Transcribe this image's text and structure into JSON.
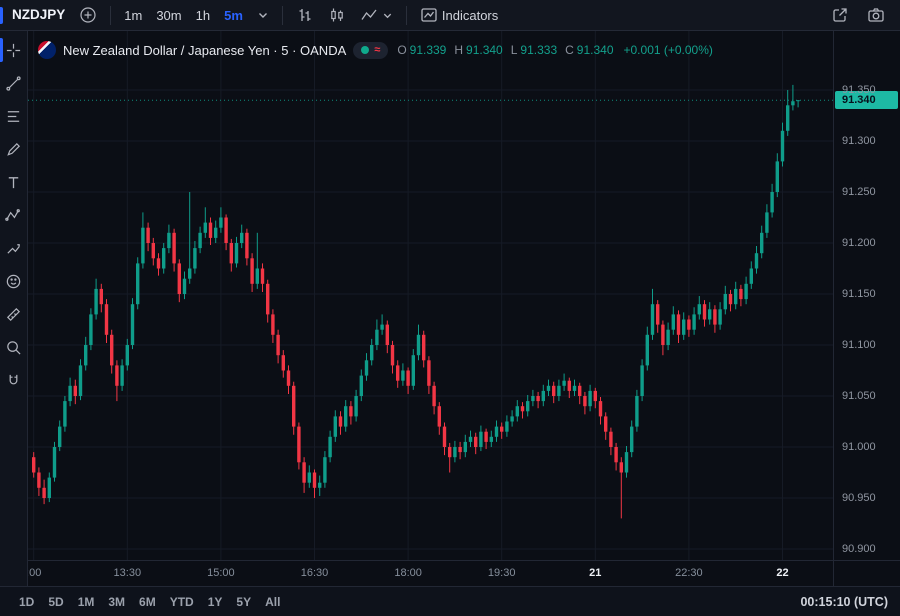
{
  "topbar": {
    "symbol": "NZDJPY",
    "intervals": [
      "1m",
      "30m",
      "1h",
      "5m"
    ],
    "active_interval": "5m",
    "indicators_label": "Indicators"
  },
  "legend": {
    "title": "New Zealand Dollar / Japanese Yen · 5 · OANDA",
    "ohlc": {
      "open_label": "O",
      "open": "91.339",
      "high_label": "H",
      "high": "91.340",
      "low_label": "L",
      "low": "91.333",
      "close_label": "C",
      "close": "91.340",
      "change": "+0.001 (+0.00%)"
    }
  },
  "price_axis": {
    "labels": [
      "91.350",
      "91.300",
      "91.250",
      "91.200",
      "91.150",
      "91.100",
      "91.050",
      "91.000",
      "90.950",
      "90.900"
    ],
    "current_price": "91.340"
  },
  "bottombar": {
    "ranges": [
      "1D",
      "5D",
      "1M",
      "3M",
      "6M",
      "YTD",
      "1Y",
      "5Y",
      "All"
    ],
    "clock": "00:15:10 (UTC)"
  },
  "sidebar_tools": [
    "cursor",
    "trend-line",
    "fib-retracement",
    "brush",
    "text",
    "pattern",
    "forecast",
    "emoji",
    "measure",
    "zoom",
    "magnet"
  ],
  "colors": {
    "up": "#0f9d8a",
    "down": "#f23645",
    "accent": "#2962ff",
    "grid": "#161b26",
    "background": "#0b0e15",
    "price_tag_bg": "#1db9a4"
  },
  "chart_data": {
    "type": "candlestick",
    "title": "New Zealand Dollar / Japanese Yen",
    "symbol": "NZDJPY",
    "exchange": "OANDA",
    "interval": "5m",
    "start_time": "12:00",
    "interval_min": 5,
    "y_axis": {
      "min": 90.9,
      "max": 91.35,
      "step": 0.05
    },
    "x_labels": [
      {
        "index": 0,
        "text": ":00",
        "major": false
      },
      {
        "index": 18,
        "text": "13:30",
        "major": false
      },
      {
        "index": 36,
        "text": "15:00",
        "major": false
      },
      {
        "index": 54,
        "text": "16:30",
        "major": false
      },
      {
        "index": 72,
        "text": "18:00",
        "major": false
      },
      {
        "index": 90,
        "text": "19:30",
        "major": false
      },
      {
        "index": 108,
        "text": "21",
        "major": true
      },
      {
        "index": 126,
        "text": "22:30",
        "major": false
      },
      {
        "index": 144,
        "text": "22",
        "major": true
      }
    ],
    "ohlc": [
      [
        90.99,
        90.995,
        90.97,
        90.975
      ],
      [
        90.975,
        90.98,
        90.952,
        90.96
      ],
      [
        90.96,
        90.968,
        90.944,
        90.95
      ],
      [
        90.95,
        90.975,
        90.946,
        90.97
      ],
      [
        90.97,
        91.005,
        90.966,
        91.0
      ],
      [
        91.0,
        91.026,
        90.996,
        91.02
      ],
      [
        91.02,
        91.05,
        91.015,
        91.045
      ],
      [
        91.045,
        91.068,
        91.04,
        91.06
      ],
      [
        91.06,
        91.066,
        91.042,
        91.05
      ],
      [
        91.05,
        91.086,
        91.046,
        91.08
      ],
      [
        91.08,
        91.108,
        91.075,
        91.1
      ],
      [
        91.1,
        91.136,
        91.095,
        91.13
      ],
      [
        91.13,
        91.165,
        91.125,
        91.155
      ],
      [
        91.155,
        91.16,
        91.132,
        91.14
      ],
      [
        91.14,
        91.145,
        91.102,
        91.11
      ],
      [
        91.11,
        91.115,
        91.072,
        91.08
      ],
      [
        91.08,
        91.085,
        91.045,
        91.06
      ],
      [
        91.06,
        91.086,
        91.055,
        91.08
      ],
      [
        91.08,
        91.106,
        91.075,
        91.1
      ],
      [
        91.1,
        91.146,
        91.096,
        91.14
      ],
      [
        91.14,
        91.186,
        91.135,
        91.18
      ],
      [
        91.18,
        91.23,
        91.175,
        91.215
      ],
      [
        91.215,
        91.22,
        91.192,
        91.2
      ],
      [
        91.2,
        91.205,
        91.178,
        91.185
      ],
      [
        91.185,
        91.19,
        91.168,
        91.175
      ],
      [
        91.175,
        91.2,
        91.17,
        91.195
      ],
      [
        91.195,
        91.218,
        91.19,
        91.21
      ],
      [
        91.21,
        91.214,
        91.172,
        91.18
      ],
      [
        91.18,
        91.184,
        91.142,
        91.15
      ],
      [
        91.15,
        91.172,
        91.145,
        91.165
      ],
      [
        91.165,
        91.25,
        91.16,
        91.175
      ],
      [
        91.175,
        91.202,
        91.17,
        91.195
      ],
      [
        91.195,
        91.216,
        91.19,
        91.21
      ],
      [
        91.21,
        91.235,
        91.205,
        91.22
      ],
      [
        91.22,
        91.225,
        91.198,
        91.205
      ],
      [
        91.205,
        91.222,
        91.2,
        91.215
      ],
      [
        91.215,
        91.235,
        91.21,
        91.225
      ],
      [
        91.225,
        91.228,
        91.193,
        91.2
      ],
      [
        91.2,
        91.204,
        91.172,
        91.18
      ],
      [
        91.18,
        91.206,
        91.176,
        91.2
      ],
      [
        91.2,
        91.218,
        91.195,
        91.21
      ],
      [
        91.21,
        91.214,
        91.178,
        91.185
      ],
      [
        91.185,
        91.19,
        91.152,
        91.16
      ],
      [
        91.16,
        91.21,
        91.155,
        91.175
      ],
      [
        91.175,
        91.18,
        91.152,
        91.16
      ],
      [
        91.16,
        91.164,
        91.122,
        91.13
      ],
      [
        91.13,
        91.135,
        91.102,
        91.11
      ],
      [
        91.11,
        91.115,
        91.082,
        91.09
      ],
      [
        91.09,
        91.095,
        91.068,
        91.075
      ],
      [
        91.075,
        91.08,
        91.052,
        91.06
      ],
      [
        91.06,
        91.064,
        91.012,
        91.02
      ],
      [
        91.02,
        91.024,
        90.978,
        90.985
      ],
      [
        90.985,
        90.99,
        90.955,
        90.965
      ],
      [
        90.965,
        90.982,
        90.96,
        90.975
      ],
      [
        90.975,
        90.978,
        90.95,
        90.96
      ],
      [
        90.96,
        90.972,
        90.952,
        90.965
      ],
      [
        90.965,
        90.996,
        90.96,
        90.99
      ],
      [
        90.99,
        91.016,
        90.985,
        91.01
      ],
      [
        91.01,
        91.036,
        91.005,
        91.03
      ],
      [
        91.03,
        91.035,
        91.012,
        91.02
      ],
      [
        91.02,
        91.046,
        91.015,
        91.04
      ],
      [
        91.04,
        91.045,
        91.022,
        91.03
      ],
      [
        91.03,
        91.056,
        91.025,
        91.05
      ],
      [
        91.05,
        91.076,
        91.045,
        91.07
      ],
      [
        91.07,
        91.092,
        91.065,
        91.085
      ],
      [
        91.085,
        91.106,
        91.08,
        91.1
      ],
      [
        91.1,
        91.125,
        91.095,
        91.115
      ],
      [
        91.115,
        91.13,
        91.11,
        91.12
      ],
      [
        91.12,
        91.124,
        91.092,
        91.1
      ],
      [
        91.1,
        91.104,
        91.072,
        91.08
      ],
      [
        91.08,
        91.085,
        91.058,
        91.065
      ],
      [
        91.065,
        91.082,
        91.06,
        91.075
      ],
      [
        91.075,
        91.078,
        91.052,
        91.06
      ],
      [
        91.06,
        91.096,
        91.056,
        91.09
      ],
      [
        91.09,
        91.12,
        91.085,
        91.11
      ],
      [
        91.11,
        91.114,
        91.078,
        91.085
      ],
      [
        91.085,
        91.089,
        91.052,
        91.06
      ],
      [
        91.06,
        91.064,
        91.032,
        91.04
      ],
      [
        91.04,
        91.044,
        91.012,
        91.02
      ],
      [
        91.02,
        91.024,
        90.992,
        91.0
      ],
      [
        91.0,
        91.004,
        90.975,
        90.99
      ],
      [
        90.99,
        91.006,
        90.985,
        91.0
      ],
      [
        91.0,
        91.005,
        90.988,
        90.995
      ],
      [
        90.995,
        91.012,
        90.99,
        91.005
      ],
      [
        91.005,
        91.016,
        91.0,
        91.01
      ],
      [
        91.01,
        91.014,
        90.993,
        91.0
      ],
      [
        91.0,
        91.021,
        90.996,
        91.015
      ],
      [
        91.015,
        91.018,
        90.998,
        91.005
      ],
      [
        91.005,
        91.016,
        91.0,
        91.01
      ],
      [
        91.01,
        91.026,
        91.005,
        91.02
      ],
      [
        91.02,
        91.024,
        91.008,
        91.015
      ],
      [
        91.015,
        91.031,
        91.01,
        91.025
      ],
      [
        91.025,
        91.036,
        91.02,
        91.03
      ],
      [
        91.03,
        91.046,
        91.025,
        91.04
      ],
      [
        91.04,
        91.044,
        91.028,
        91.035
      ],
      [
        91.035,
        91.051,
        91.03,
        91.045
      ],
      [
        91.045,
        91.056,
        91.04,
        91.05
      ],
      [
        91.05,
        91.054,
        91.038,
        91.045
      ],
      [
        91.045,
        91.061,
        91.04,
        91.055
      ],
      [
        91.055,
        91.066,
        91.05,
        91.06
      ],
      [
        91.06,
        91.064,
        91.043,
        91.05
      ],
      [
        91.05,
        91.066,
        91.045,
        91.06
      ],
      [
        91.06,
        91.072,
        91.055,
        91.065
      ],
      [
        91.065,
        91.068,
        91.048,
        91.055
      ],
      [
        91.055,
        91.066,
        91.05,
        91.06
      ],
      [
        91.06,
        91.063,
        91.042,
        91.05
      ],
      [
        91.05,
        91.054,
        91.032,
        91.04
      ],
      [
        91.04,
        91.061,
        91.035,
        91.055
      ],
      [
        91.055,
        91.058,
        91.038,
        91.045
      ],
      [
        91.045,
        91.049,
        91.022,
        91.03
      ],
      [
        91.03,
        91.034,
        91.007,
        91.015
      ],
      [
        91.015,
        91.019,
        90.992,
        91.0
      ],
      [
        91.0,
        91.004,
        90.977,
        90.985
      ],
      [
        90.985,
        90.99,
        90.93,
        90.975
      ],
      [
        90.975,
        91.001,
        90.97,
        90.995
      ],
      [
        90.995,
        91.026,
        90.99,
        91.02
      ],
      [
        91.02,
        91.056,
        91.015,
        91.05
      ],
      [
        91.05,
        91.086,
        91.045,
        91.08
      ],
      [
        91.08,
        91.118,
        91.075,
        91.11
      ],
      [
        91.11,
        91.155,
        91.105,
        91.14
      ],
      [
        91.14,
        91.144,
        91.112,
        91.12
      ],
      [
        91.12,
        91.124,
        91.09,
        91.1
      ],
      [
        91.1,
        91.122,
        91.095,
        91.115
      ],
      [
        91.115,
        91.138,
        91.11,
        91.13
      ],
      [
        91.13,
        91.134,
        91.102,
        91.11
      ],
      [
        91.11,
        91.132,
        91.105,
        91.125
      ],
      [
        91.125,
        91.129,
        91.108,
        91.115
      ],
      [
        91.115,
        91.137,
        91.11,
        91.13
      ],
      [
        91.13,
        91.148,
        91.125,
        91.14
      ],
      [
        91.14,
        91.144,
        91.118,
        91.125
      ],
      [
        91.125,
        91.142,
        91.12,
        91.135
      ],
      [
        91.135,
        91.139,
        91.112,
        91.12
      ],
      [
        91.12,
        91.142,
        91.115,
        91.135
      ],
      [
        91.135,
        91.158,
        91.13,
        91.15
      ],
      [
        91.15,
        91.154,
        91.133,
        91.14
      ],
      [
        91.14,
        91.162,
        91.135,
        91.155
      ],
      [
        91.155,
        91.159,
        91.138,
        91.145
      ],
      [
        91.145,
        91.167,
        91.14,
        91.16
      ],
      [
        91.16,
        91.182,
        91.155,
        91.175
      ],
      [
        91.175,
        91.197,
        91.17,
        91.19
      ],
      [
        91.19,
        91.217,
        91.185,
        91.21
      ],
      [
        91.21,
        91.238,
        91.205,
        91.23
      ],
      [
        91.23,
        91.258,
        91.225,
        91.25
      ],
      [
        91.25,
        91.288,
        91.245,
        91.28
      ],
      [
        91.28,
        91.318,
        91.275,
        91.31
      ],
      [
        91.31,
        91.35,
        91.305,
        91.335
      ],
      [
        91.335,
        91.355,
        91.33,
        91.339
      ],
      [
        91.339,
        91.34,
        91.333,
        91.34
      ]
    ]
  }
}
